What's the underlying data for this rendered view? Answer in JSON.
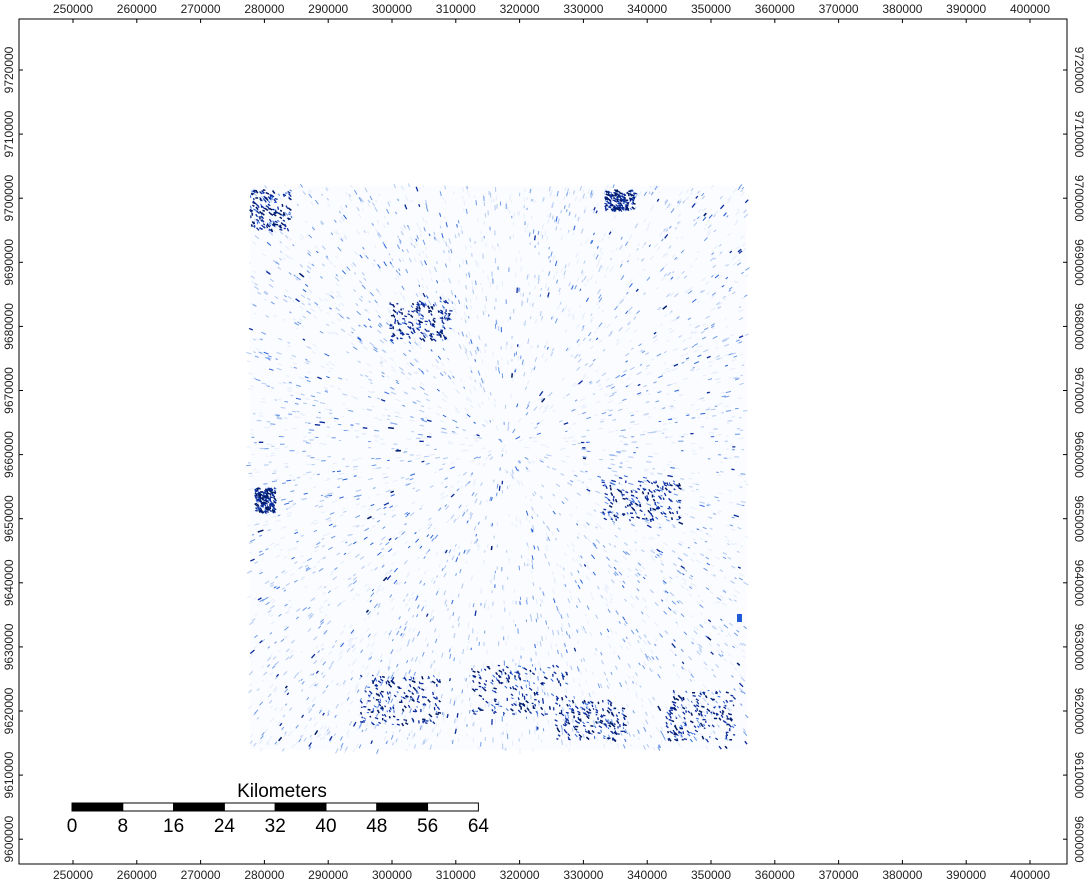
{
  "map": {
    "x_ticks": [
      "250000",
      "260000",
      "270000",
      "280000",
      "290000",
      "300000",
      "310000",
      "320000",
      "330000",
      "340000",
      "350000",
      "360000",
      "370000",
      "380000",
      "390000",
      "400000"
    ],
    "y_ticks": [
      "9720000",
      "9710000",
      "9700000",
      "9690000",
      "9680000",
      "9670000",
      "9660000",
      "9650000",
      "9640000",
      "9630000",
      "9620000",
      "9610000",
      "9600000"
    ],
    "raster_colors": [
      "#e6eefb",
      "#b7cdf2",
      "#6f9be6",
      "#2b64d8",
      "#0a2b9a",
      "#001a66"
    ],
    "frame_color": "#000000",
    "hotspot_color": "#1f5bd6"
  },
  "scale_bar": {
    "title": "Kilometers",
    "labels": [
      "0",
      "8",
      "16",
      "24",
      "32",
      "40",
      "48",
      "56",
      "64"
    ],
    "colors": [
      "#000000",
      "#ffffff"
    ]
  }
}
